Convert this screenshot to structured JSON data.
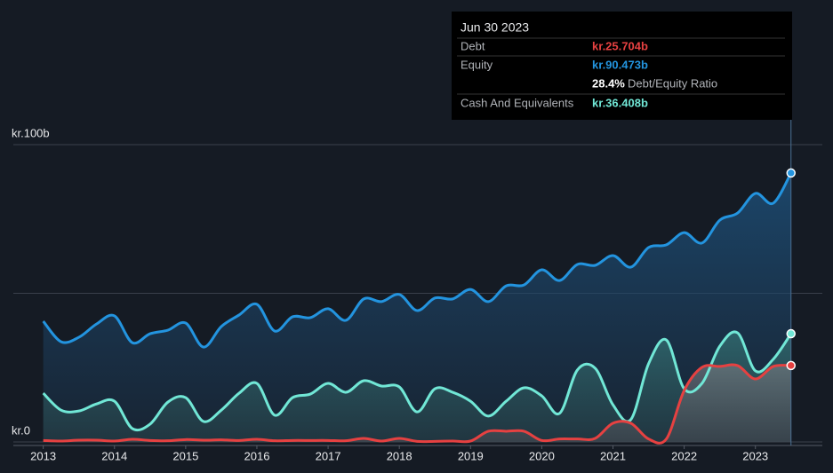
{
  "chart_data": {
    "type": "line",
    "x": [
      2013,
      2013.25,
      2013.5,
      2013.75,
      2014,
      2014.25,
      2014.5,
      2014.75,
      2015,
      2015.25,
      2015.5,
      2015.75,
      2016,
      2016.25,
      2016.5,
      2016.75,
      2017,
      2017.25,
      2017.5,
      2017.75,
      2018,
      2018.25,
      2018.5,
      2018.75,
      2019,
      2019.25,
      2019.5,
      2019.75,
      2020,
      2020.25,
      2020.5,
      2020.75,
      2021,
      2021.25,
      2021.5,
      2021.75,
      2022,
      2022.25,
      2022.5,
      2022.75,
      2023,
      2023.25,
      2023.5
    ],
    "series": [
      {
        "name": "Equity",
        "color": "#2394df",
        "values": [
          40.6,
          33.7,
          35.2,
          39.7,
          42.4,
          33.4,
          36.4,
          37.6,
          40.0,
          31.9,
          38.8,
          42.7,
          46.3,
          37.3,
          42.1,
          41.8,
          44.8,
          40.9,
          48.1,
          47.2,
          49.6,
          44.2,
          48.4,
          48.1,
          51.3,
          47.2,
          52.5,
          52.8,
          57.9,
          54.3,
          59.7,
          59.4,
          62.7,
          58.8,
          65.4,
          66.3,
          70.4,
          66.9,
          74.6,
          77.0,
          83.6,
          80.3,
          90.473
        ]
      },
      {
        "name": "Cash And Equivalents",
        "color": "#71e7d6",
        "values": [
          16.4,
          10.7,
          10.4,
          12.8,
          13.7,
          4.5,
          6.0,
          13.4,
          14.9,
          6.9,
          10.7,
          16.4,
          19.7,
          9.0,
          14.9,
          16.1,
          19.7,
          16.7,
          20.6,
          18.8,
          18.5,
          10.1,
          17.9,
          16.7,
          13.7,
          8.7,
          13.7,
          18.2,
          15.5,
          9.6,
          24.2,
          24.8,
          12.5,
          7.5,
          26.3,
          34.3,
          17.9,
          19.7,
          32.2,
          36.7,
          23.9,
          27.8,
          36.408
        ]
      },
      {
        "name": "Debt",
        "color": "#e64141",
        "values": [
          0.5,
          0.3,
          0.6,
          0.6,
          0.3,
          0.9,
          0.5,
          0.4,
          0.8,
          0.6,
          0.7,
          0.5,
          0.9,
          0.4,
          0.5,
          0.5,
          0.5,
          0.4,
          1.2,
          0.3,
          1.2,
          0.2,
          0.2,
          0.3,
          0.3,
          3.6,
          3.6,
          3.6,
          0.5,
          1.0,
          1.0,
          1.2,
          6.3,
          6.3,
          1.0,
          1.0,
          17.3,
          25.1,
          25.4,
          25.7,
          21.2,
          25.4,
          25.704
        ]
      }
    ],
    "xlim": [
      2012.58,
      2023.94
    ],
    "xticks": [
      2013,
      2014,
      2015,
      2016,
      2017,
      2018,
      2019,
      2020,
      2021,
      2022,
      2023
    ],
    "ylim": [
      0,
      100
    ],
    "yticks": [
      {
        "value": 0,
        "label": "kr.0"
      },
      {
        "value": 100,
        "label": "kr.100b"
      }
    ],
    "ygrid": [
      0,
      50,
      100
    ],
    "tooltip": {
      "date": "Jun 30 2023",
      "rows": [
        {
          "label": "Debt",
          "value": "kr.25.704b",
          "color": "#e64141"
        },
        {
          "label": "Equity",
          "value": "kr.90.473b",
          "color": "#2394df"
        }
      ],
      "ratio": "28.4%",
      "ratio_label": "Debt/Equity Ratio",
      "cash": {
        "label": "Cash And Equivalents",
        "value": "kr.36.408b",
        "color": "#71e7d6"
      }
    }
  }
}
